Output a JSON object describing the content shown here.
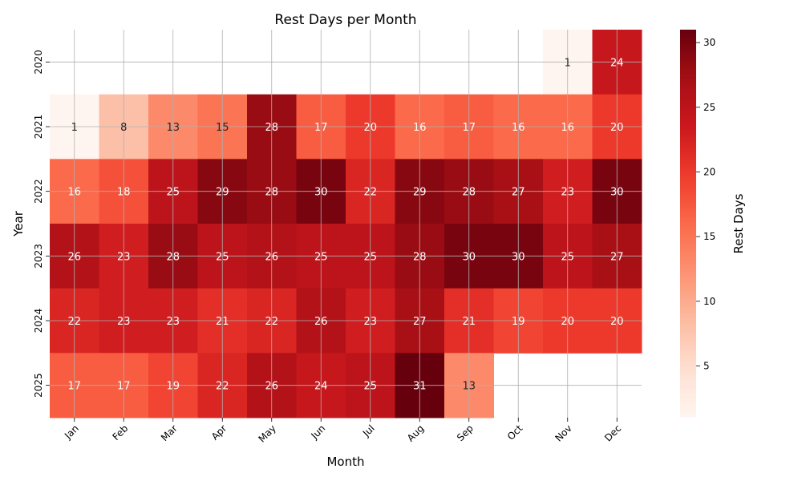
{
  "chart_data": {
    "type": "heatmap",
    "title": "Rest Days per Month",
    "xlabel": "Month",
    "ylabel": "Year",
    "x_categories": [
      "Jan",
      "Feb",
      "Mar",
      "Apr",
      "May",
      "Jun",
      "Jul",
      "Aug",
      "Sep",
      "Oct",
      "Nov",
      "Dec"
    ],
    "y_categories": [
      "2020",
      "2021",
      "2022",
      "2023",
      "2024",
      "2025"
    ],
    "values": [
      [
        null,
        null,
        null,
        null,
        null,
        null,
        null,
        null,
        null,
        null,
        1,
        24
      ],
      [
        1,
        8,
        13,
        15,
        28,
        17,
        20,
        16,
        17,
        16,
        16,
        20
      ],
      [
        16,
        18,
        25,
        29,
        28,
        30,
        22,
        29,
        28,
        27,
        23,
        30
      ],
      [
        26,
        23,
        28,
        25,
        26,
        25,
        25,
        28,
        30,
        30,
        25,
        27
      ],
      [
        22,
        23,
        23,
        21,
        22,
        26,
        23,
        27,
        21,
        19,
        20,
        20
      ],
      [
        17,
        17,
        19,
        22,
        26,
        24,
        25,
        31,
        13,
        null,
        null,
        null
      ]
    ],
    "colorbar": {
      "label": "Rest Days",
      "min": 1,
      "max": 31,
      "ticks": [
        5,
        10,
        15,
        20,
        25,
        30
      ]
    },
    "colormap": "Reds",
    "grid": true,
    "annotations": true
  }
}
